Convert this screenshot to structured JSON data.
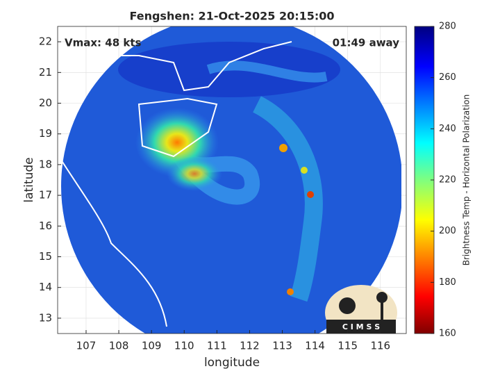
{
  "title": "Fengshen: 21-Oct-2025 20:15:00",
  "annotations": {
    "vmax": "Vmax: 48 kts",
    "time_away": "01:49 away"
  },
  "axes": {
    "xlabel": "longitude",
    "ylabel": "latitude",
    "xlim": [
      106.13,
      116.79
    ],
    "ylim": [
      12.5,
      22.5
    ],
    "xticks": [
      107,
      108,
      109,
      110,
      111,
      112,
      113,
      114,
      115,
      116
    ],
    "yticks": [
      13,
      14,
      15,
      16,
      17,
      18,
      19,
      20,
      21,
      22
    ],
    "grid": true
  },
  "colorbar": {
    "label": "Brightness Temp - Horizontal Polarization",
    "lim": [
      160,
      280
    ],
    "ticks": [
      160,
      180,
      200,
      220,
      240,
      260,
      280
    ]
  },
  "logo": "C I M S S"
}
